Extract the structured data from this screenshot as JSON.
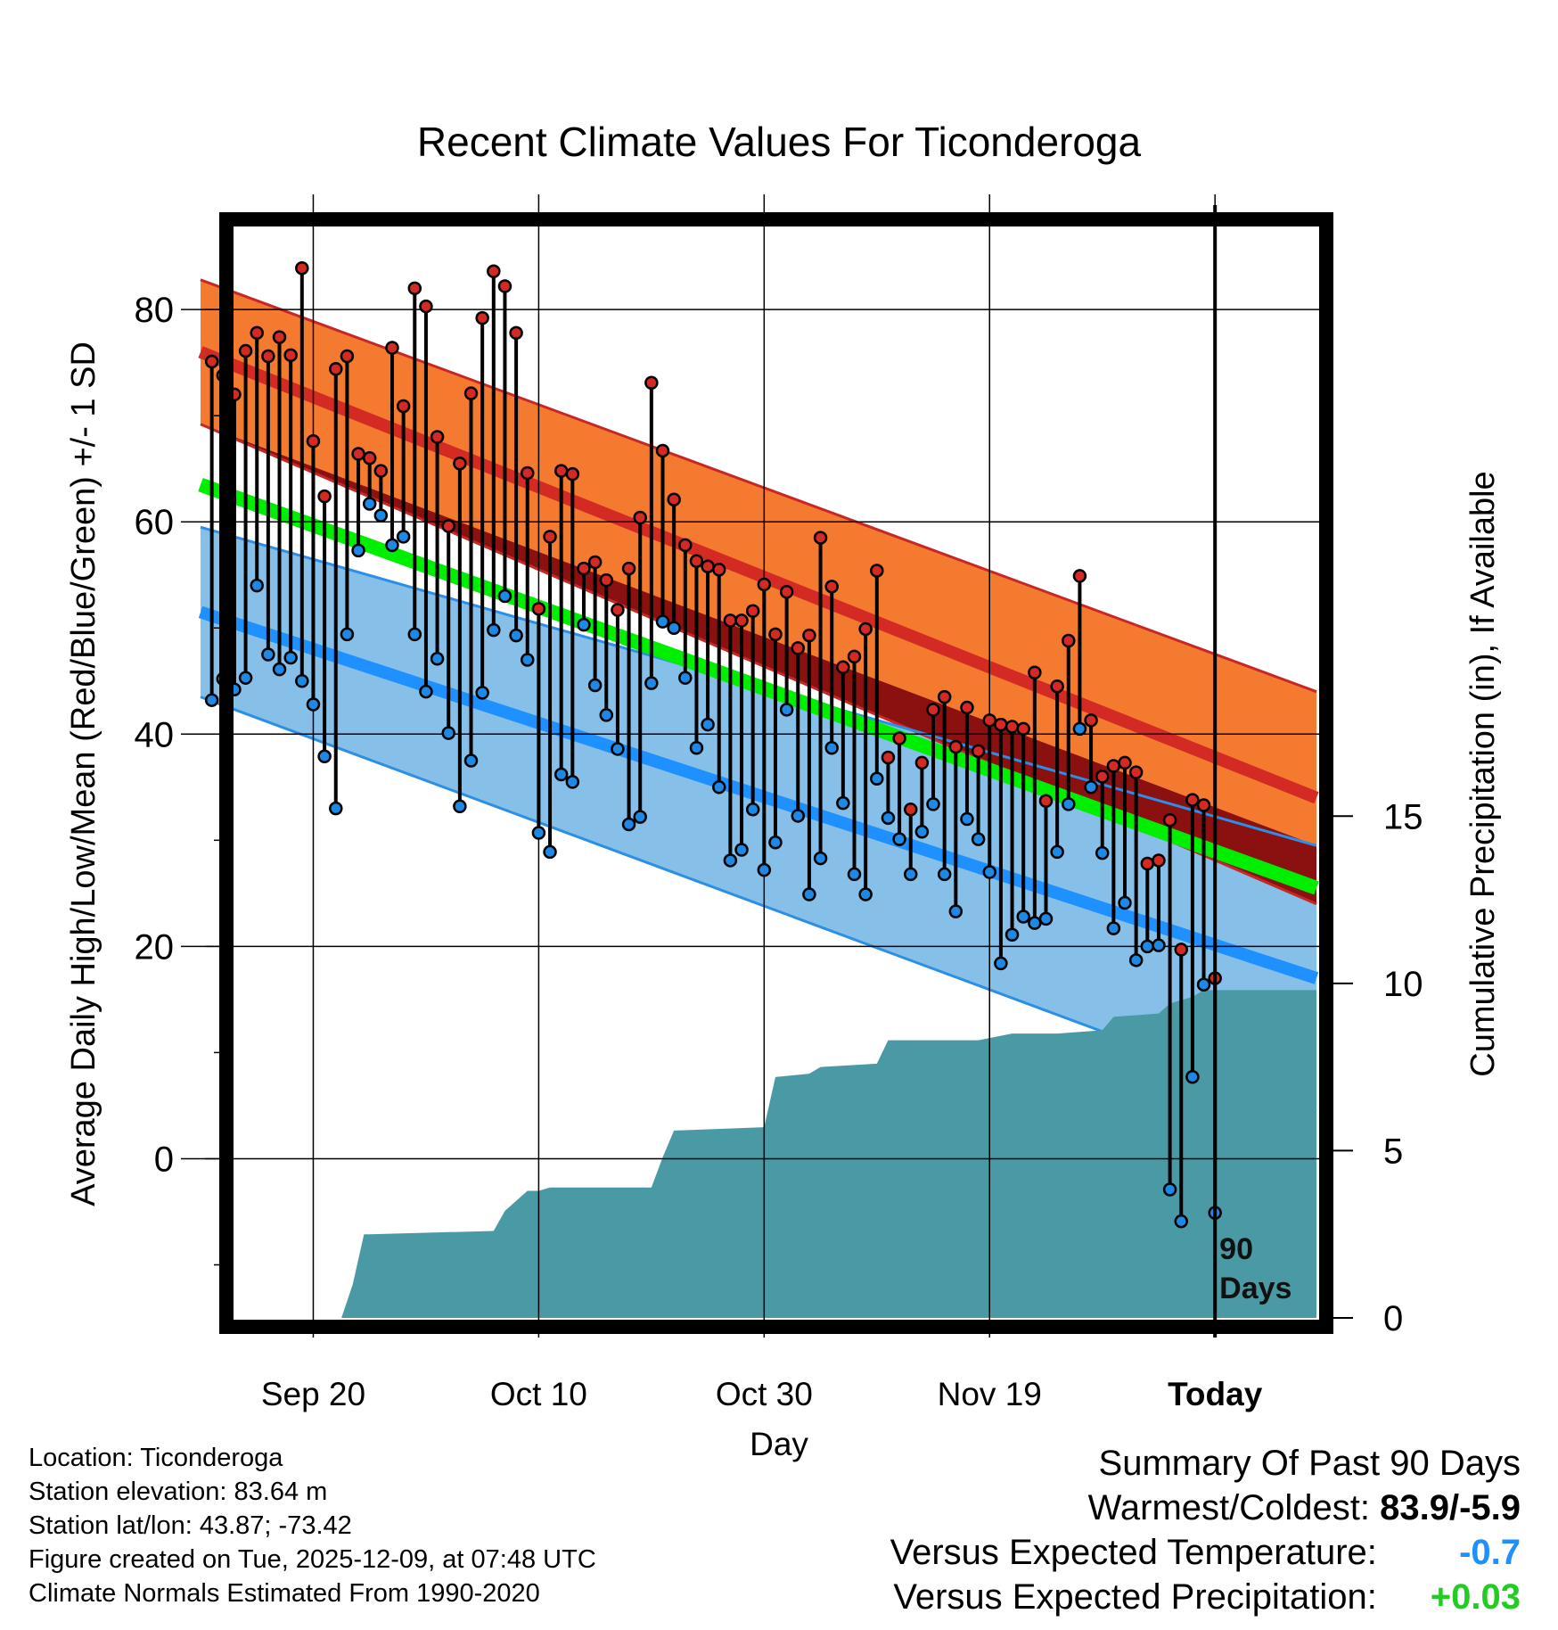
{
  "chart_data": {
    "type": "line",
    "title": "Recent Climate Values For Ticonderoga",
    "xlabel": "Day",
    "ylabel": "Average Daily High/Low/Mean (Red/Blue/Green) +/- 1 SD",
    "y2label": "Cumulative Precipitation (in), If Available",
    "xlim": [
      -10,
      89
    ],
    "ylim": [
      -15,
      89
    ],
    "y2lim": [
      0,
      33
    ],
    "x_ticks": [
      {
        "x": 0,
        "label": "Sep 20"
      },
      {
        "x": 20,
        "label": "Oct 10"
      },
      {
        "x": 40,
        "label": "Oct 30"
      },
      {
        "x": 60,
        "label": "Nov 19"
      },
      {
        "x": 80,
        "label": "Today"
      }
    ],
    "y_ticks": [
      0,
      20,
      40,
      60,
      80
    ],
    "y2_ticks": [
      0,
      5,
      10,
      15
    ],
    "today_x": 80,
    "today_label": [
      "90",
      "Days"
    ],
    "colors": {
      "high_band": "#f47a30",
      "high_mean": "#d42a24",
      "high_edge": "#c62828",
      "low_band": "#86c0e8",
      "low_mean": "#1e90ff",
      "low_edge": "#2b8fe8",
      "mean": "#00ee00",
      "overlap": "#8b1010",
      "precip": "#4a9aa5",
      "high_dot": "#d42a24",
      "low_dot": "#1e88e5"
    },
    "normals": {
      "x": [
        -10,
        89
      ],
      "high_mean": [
        76,
        34
      ],
      "high_sd": [
        6.8,
        10
      ],
      "low_mean": [
        51.5,
        17
      ],
      "low_sd": [
        8,
        12.5
      ],
      "mean": [
        63.5,
        25.5
      ]
    },
    "series": [
      {
        "name": "high",
        "values": [
          75.1,
          73.8,
          72,
          76.1,
          77.8,
          75.6,
          77.4,
          75.7,
          83.9,
          67.6,
          62.4,
          74.4,
          75.6,
          66.4,
          66,
          64.8,
          76.4,
          70.9,
          82,
          80.3,
          68,
          59.6,
          65.5,
          72.1,
          79.2,
          83.6,
          82.2,
          77.8,
          64.6,
          51.8,
          58.6,
          64.8,
          64.5,
          55.6,
          56.2,
          54.5,
          51.7,
          55.6,
          60.4,
          73.1,
          66.7,
          62.1,
          57.8,
          56.3,
          55.8,
          55.5,
          50.7,
          50.7,
          51.6,
          54.1,
          49.4,
          53.4,
          48.1,
          49.3,
          58.5,
          53.9,
          46.3,
          47.3,
          49.9,
          55.4,
          37.8,
          39.6,
          32.9,
          37.3,
          42.3,
          43.5,
          38.8,
          42.5,
          38.4,
          41.3,
          40.9,
          40.7,
          40.5,
          45.8,
          33.7,
          44.5,
          48.8,
          54.9,
          41.3,
          36,
          37,
          37.3,
          36.4,
          27.8,
          28.1,
          31.9,
          19.7,
          33.8,
          33.3,
          17
        ]
      },
      {
        "name": "low",
        "values": [
          43.2,
          45.2,
          44.2,
          45.3,
          54,
          47.5,
          46.1,
          47.2,
          45,
          42.8,
          37.9,
          33,
          49.4,
          57.3,
          61.7,
          60.6,
          57.8,
          58.6,
          49.4,
          44,
          47.1,
          40.1,
          33.2,
          37.5,
          43.9,
          49.8,
          53,
          49.3,
          47,
          30.7,
          28.9,
          36.2,
          35.5,
          50.3,
          44.6,
          41.8,
          38.6,
          31.5,
          32.2,
          44.8,
          50.6,
          50,
          45.3,
          38.7,
          40.9,
          35,
          28.1,
          29.1,
          32.9,
          27.2,
          29.8,
          42.3,
          32.3,
          24.9,
          28.3,
          38.7,
          33.5,
          26.8,
          24.9,
          35.8,
          32.1,
          30.1,
          26.8,
          30.8,
          33.4,
          26.8,
          23.3,
          32,
          30.1,
          27,
          18.4,
          21.1,
          22.8,
          22.2,
          22.6,
          28.9,
          33.4,
          40.5,
          35,
          28.8,
          21.7,
          24.1,
          18.7,
          20,
          20.1,
          -2.9,
          -5.9,
          7.7,
          16.4,
          -5.1
        ]
      }
    ],
    "precip": {
      "x": [
        -10,
        2.5,
        3.5,
        4.5,
        5,
        16,
        17,
        19,
        20,
        21,
        30,
        31,
        31.5,
        32,
        40,
        41,
        44,
        45,
        50,
        51,
        59,
        62,
        66,
        70,
        71,
        75,
        76,
        78,
        79,
        89
      ],
      "values": [
        0,
        0,
        1,
        2.5,
        2.5,
        2.6,
        3.2,
        3.8,
        3.8,
        3.9,
        3.9,
        4.8,
        5.2,
        5.6,
        5.7,
        7.2,
        7.3,
        7.5,
        7.6,
        8.3,
        8.3,
        8.5,
        8.5,
        8.6,
        9.0,
        9.1,
        9.4,
        9.6,
        9.8,
        9.8
      ]
    }
  },
  "info": [
    "Location: Ticonderoga",
    "Station elevation: 83.64 m",
    "Station lat/lon: 43.87; -73.42",
    "Figure created on Tue, 2025-12-09, at 07:48 UTC",
    "Climate Normals Estimated From 1990-2020"
  ],
  "summary": {
    "title": "Summary Of Past 90 Days",
    "warmest_label": "Warmest/Coldest:",
    "warmest_value": "83.9/-5.9",
    "temp_label": "Versus Expected Temperature:",
    "temp_value": "-0.7",
    "precip_label": "Versus Expected Precipitation:",
    "precip_value": "+0.03"
  }
}
